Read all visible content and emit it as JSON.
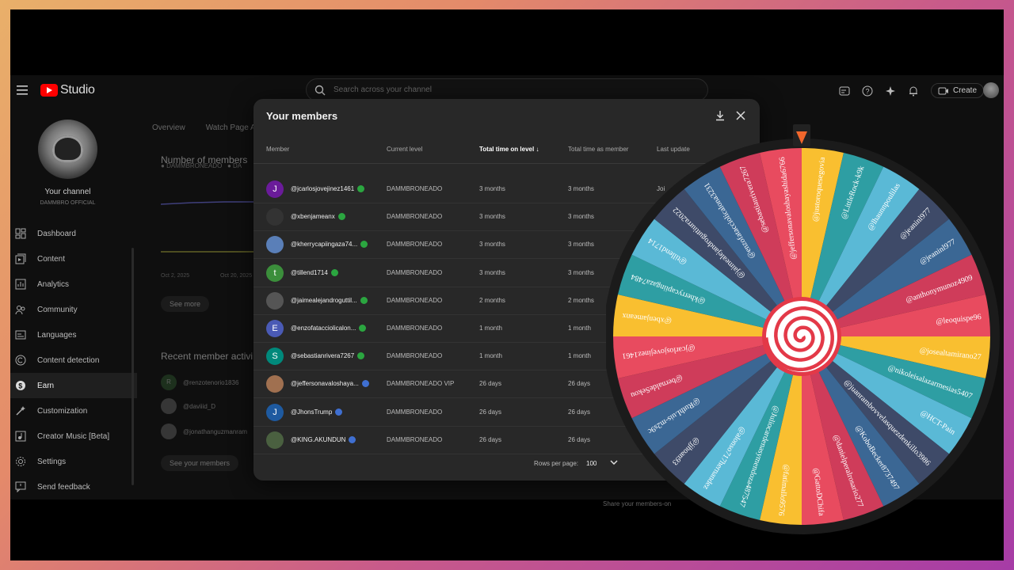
{
  "app": {
    "title": "Studio"
  },
  "search": {
    "placeholder": "Search across your channel"
  },
  "topbar": {
    "create_label": "Create"
  },
  "channel": {
    "title": "Your channel",
    "name": "DAMMBRO OFFICIAL"
  },
  "sidebar": {
    "items": [
      {
        "label": "Dashboard",
        "icon": "dashboard-icon"
      },
      {
        "label": "Content",
        "icon": "content-icon"
      },
      {
        "label": "Analytics",
        "icon": "analytics-icon"
      },
      {
        "label": "Community",
        "icon": "community-icon"
      },
      {
        "label": "Languages",
        "icon": "languages-icon"
      },
      {
        "label": "Content detection",
        "icon": "copyright-icon"
      },
      {
        "label": "Earn",
        "icon": "dollar-icon"
      },
      {
        "label": "Customization",
        "icon": "customization-icon"
      },
      {
        "label": "Creator Music [Beta]",
        "icon": "music-icon"
      },
      {
        "label": "Settings",
        "icon": "gear-icon"
      },
      {
        "label": "Send feedback",
        "icon": "feedback-icon"
      }
    ],
    "active_index": 6
  },
  "background": {
    "tabs": [
      "Overview",
      "Watch Page A"
    ],
    "members_title": "Number of members",
    "legend_1": "DAMMBRONEADO",
    "legend_2": "DA",
    "x_label_1": "Oct 2, 2025",
    "x_label_2": "Oct 20, 2025",
    "see_more": "See more",
    "activity_title": "Recent member activi",
    "activity": [
      {
        "initial": "R",
        "handle": "@renzotenorio1836"
      },
      {
        "initial": "",
        "handle": "@daviiid_D"
      },
      {
        "initial": "",
        "handle": "@jonathanguzmanram"
      }
    ],
    "see_members": "See your members",
    "share_text": "Share your members-on"
  },
  "modal": {
    "title": "Your members",
    "columns": [
      "Member",
      "Current level",
      "Total time on level",
      "Total time as member",
      "Last update"
    ],
    "rows": [
      {
        "avatar_letter": "J",
        "avatar_color": "#6a1b9a",
        "handle": "@jcarlosjovejinez1461",
        "level": "DAMMBRONEADO",
        "time_level": "3 months",
        "time_member": "3 months",
        "last": "Joi"
      },
      {
        "avatar_letter": "",
        "avatar_color": "#333333",
        "handle": "@xbenjameanx",
        "level": "DAMMBRONEADO",
        "time_level": "3 months",
        "time_member": "3 months",
        "last": ""
      },
      {
        "avatar_letter": "",
        "avatar_color": "#5a7fb8",
        "handle": "@kherrycapiingaza74...",
        "level": "DAMMBRONEADO",
        "time_level": "3 months",
        "time_member": "3 months",
        "last": ""
      },
      {
        "avatar_letter": "t",
        "avatar_color": "#3b8e3b",
        "handle": "@tillend1714",
        "level": "DAMMBRONEADO",
        "time_level": "3 months",
        "time_member": "3 months",
        "last": ""
      },
      {
        "avatar_letter": "",
        "avatar_color": "#555555",
        "handle": "@jaimealejandroguttil...",
        "level": "DAMMBRONEADO",
        "time_level": "2 months",
        "time_member": "2 months",
        "last": ""
      },
      {
        "avatar_letter": "E",
        "avatar_color": "#4a5ab5",
        "handle": "@enzofatacciolicalon...",
        "level": "DAMMBRONEADO",
        "time_level": "1 month",
        "time_member": "1 month",
        "last": ""
      },
      {
        "avatar_letter": "S",
        "avatar_color": "#00897b",
        "handle": "@sebastianrivera7267",
        "level": "DAMMBRONEADO",
        "time_level": "1 month",
        "time_member": "1 month",
        "last": ""
      },
      {
        "avatar_letter": "",
        "avatar_color": "#a07050",
        "handle": "@jeffersonavaloshaya...",
        "level": "DAMMBRONEADO VIP",
        "time_level": "26 days",
        "time_member": "26 days",
        "last": ""
      },
      {
        "avatar_letter": "J",
        "avatar_color": "#1e5aa0",
        "handle": "@JhonsTrump",
        "level": "DAMMBRONEADO",
        "time_level": "26 days",
        "time_member": "26 days",
        "last": ""
      },
      {
        "avatar_letter": "",
        "avatar_color": "#4a6040",
        "handle": "@KING.AKUNDUN",
        "level": "DAMMBRONEADO",
        "time_level": "26 days",
        "time_member": "26 days",
        "last": ""
      }
    ],
    "rows_per_page_label": "Rows per page:",
    "rows_per_page": "100"
  },
  "wheel": {
    "labels": [
      "@justoroquesegovia",
      "@LittleRock-k9k",
      "@lhaunnpoulilas",
      "@jeaninl977",
      "@jeaninl977",
      "@anthonymunoz4909",
      "@leoquispe96",
      "@josealtamirano27",
      "@nikoleisalazarmesias5407",
      "@HCT-Pain",
      "@juanrambovvelasquezdenkillo3986",
      "@KoboBecker8737497",
      "@danielperalrosario277",
      "@GattoDChifa",
      "@fatimallo9576",
      "@Juliocardenasymendoza487547",
      "@alonso717hernandez",
      "@jjhoan93",
      "@RuthLuis-m2s9c",
      "@bernaldeSekou",
      "@jcarlosjovejinez1461",
      "@xbenjameanx",
      "@kherrycapiingaza7484",
      "@tillend1714",
      "@jaimealejandroguttiurra2022",
      "@enzofatacciolicalona3231",
      "@sebastianrivera7267",
      "@jeffersonavaloshayashida6766"
    ],
    "colors": [
      "#f9bf30",
      "#2e9ea3",
      "#5ab9d6",
      "#3e4a68",
      "#3b6794",
      "#cf3c5a",
      "#e84b5f",
      "#f9bf30",
      "#2e9ea3",
      "#5ab9d6",
      "#3e4a68",
      "#3b6794",
      "#cf3c5a",
      "#e84b5f",
      "#f9bf30",
      "#2e9ea3",
      "#5ab9d6",
      "#3e4a68",
      "#3b6794",
      "#cf3c5a",
      "#e84b5f",
      "#f9bf30",
      "#2e9ea3",
      "#5ab9d6",
      "#3e4a68",
      "#3b6794",
      "#cf3c5a",
      "#e84b5f"
    ]
  }
}
